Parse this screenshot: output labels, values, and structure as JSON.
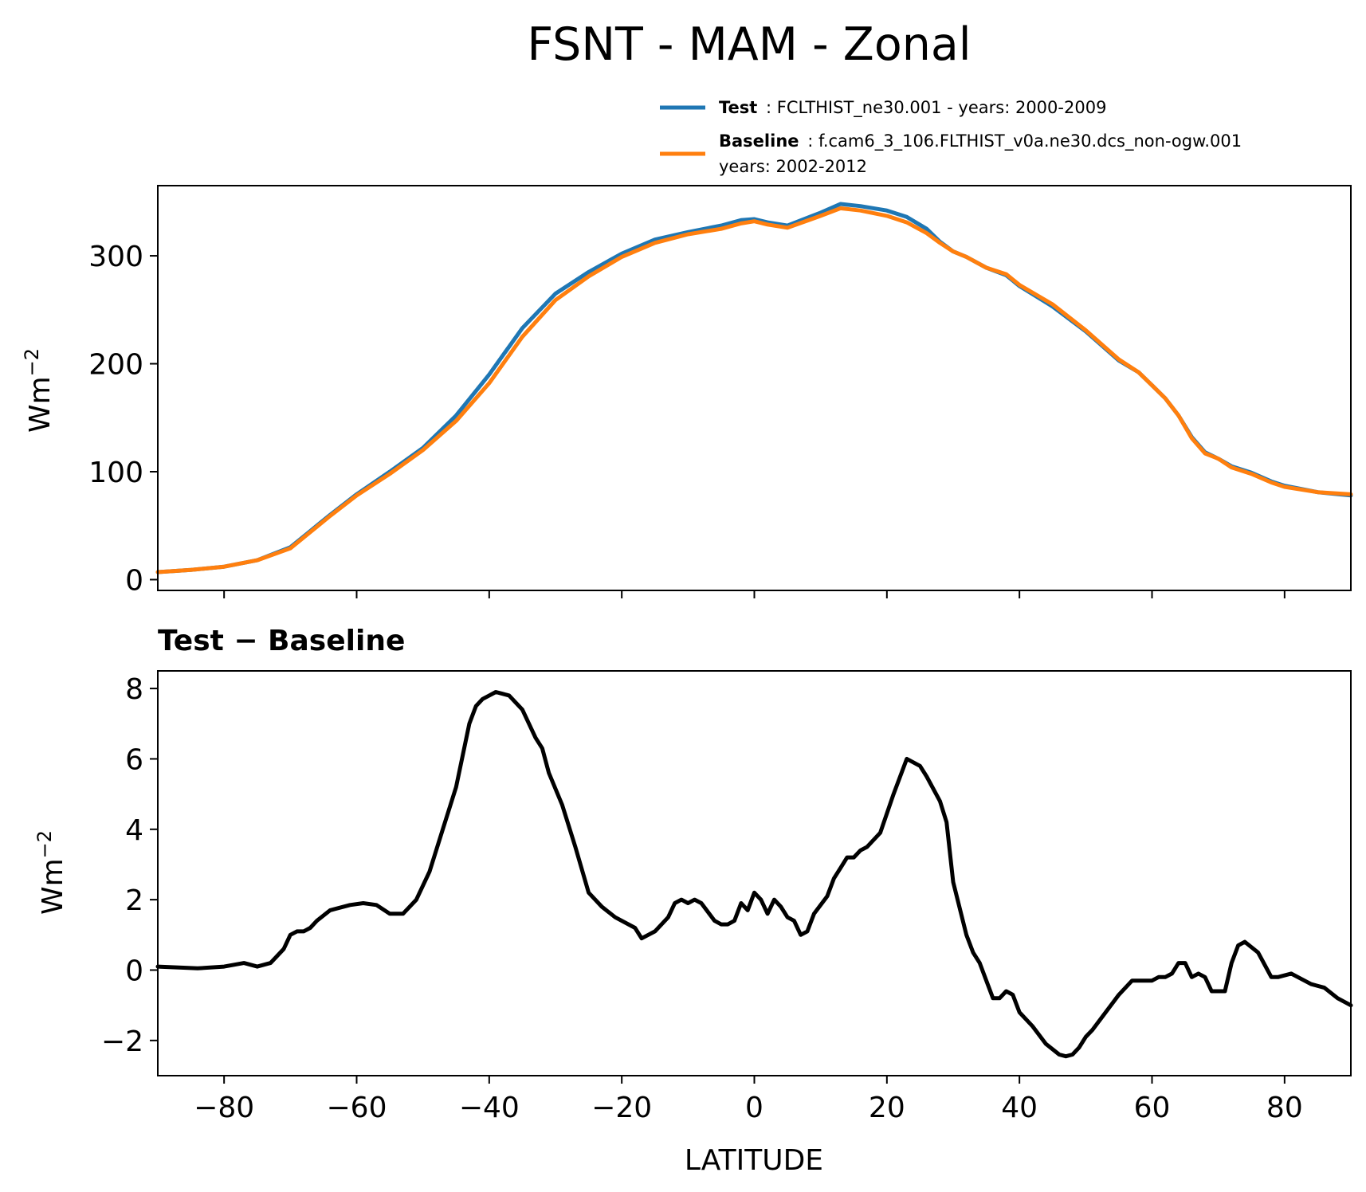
{
  "title": "FSNT - MAM - Zonal",
  "legend": {
    "test_label": "Test",
    "test_text": ": FCLTHIST_ne30.001 - years: 2000-2009",
    "baseline_label": "Baseline",
    "baseline_text": ": f.cam6_3_106.FLTHIST_v0a.ne30.dcs_non-ogw.001",
    "baseline_text2": "years: 2002-2012"
  },
  "colors": {
    "test": "#1f77b4",
    "baseline": "#ff7f0e",
    "diff": "#000000"
  },
  "chart_data": [
    {
      "type": "line",
      "title": "",
      "xlabel": "",
      "ylabel": "Wm",
      "ylabel_sup": "−2",
      "xlim": [
        -90,
        90
      ],
      "ylim": [
        -10,
        365
      ],
      "yticks": [
        0,
        100,
        200,
        300
      ],
      "ytick_labels": [
        "0",
        "100",
        "200",
        "300"
      ],
      "xticks": [
        -80,
        -60,
        -40,
        -20,
        0,
        20,
        40,
        60,
        80
      ],
      "series": [
        {
          "name": "Test",
          "x": [
            -90,
            -85,
            -80,
            -75,
            -70,
            -68,
            -66,
            -64,
            -60,
            -55,
            -50,
            -45,
            -40,
            -35,
            -30,
            -25,
            -20,
            -15,
            -10,
            -5,
            -2,
            0,
            2,
            5,
            10,
            13,
            16,
            20,
            23,
            26,
            28,
            30,
            32,
            35,
            38,
            40,
            45,
            50,
            55,
            58,
            60,
            62,
            64,
            66,
            68,
            70,
            72,
            75,
            78,
            80,
            85,
            90
          ],
          "y": [
            7,
            9,
            12,
            18,
            30,
            40,
            50,
            60,
            79,
            100,
            122,
            152,
            190,
            233,
            265,
            285,
            302,
            315,
            322,
            328,
            333,
            334,
            331,
            328,
            340,
            348,
            346,
            342,
            336,
            325,
            313,
            304,
            299,
            289,
            282,
            272,
            253,
            230,
            203,
            192,
            180,
            168,
            152,
            132,
            118,
            112,
            105,
            99,
            91,
            87,
            81,
            78
          ]
        },
        {
          "name": "Baseline",
          "x": [
            -90,
            -85,
            -80,
            -75,
            -70,
            -68,
            -66,
            -64,
            -60,
            -55,
            -50,
            -45,
            -40,
            -35,
            -30,
            -25,
            -20,
            -15,
            -10,
            -5,
            -2,
            0,
            2,
            5,
            10,
            13,
            16,
            20,
            23,
            26,
            28,
            30,
            32,
            35,
            38,
            40,
            45,
            50,
            55,
            58,
            60,
            62,
            64,
            66,
            68,
            70,
            72,
            75,
            78,
            80,
            85,
            90
          ],
          "y": [
            7,
            9,
            12,
            18,
            29,
            39,
            49,
            59,
            78,
            98,
            120,
            147,
            182,
            225,
            259,
            281,
            299,
            312,
            320,
            325,
            330,
            332,
            329,
            326,
            337,
            344,
            342,
            337,
            331,
            321,
            312,
            304,
            299,
            289,
            283,
            273,
            255,
            231,
            204,
            192,
            180,
            168,
            152,
            131,
            117,
            112,
            104,
            98,
            90,
            86,
            81,
            79
          ]
        }
      ]
    },
    {
      "type": "line",
      "title": "Test − Baseline",
      "xlabel": "LATITUDE",
      "ylabel": "Wm",
      "ylabel_sup": "−2",
      "xlim": [
        -90,
        90
      ],
      "ylim": [
        -3,
        8.5
      ],
      "yticks": [
        -2,
        0,
        2,
        4,
        6,
        8
      ],
      "ytick_labels": [
        "−2",
        "0",
        "2",
        "4",
        "6",
        "8"
      ],
      "xticks": [
        -80,
        -60,
        -40,
        -20,
        0,
        20,
        40,
        60,
        80
      ],
      "xtick_labels": [
        "−80",
        "−60",
        "−40",
        "−20",
        "0",
        "20",
        "40",
        "60",
        "80"
      ],
      "series": [
        {
          "name": "Test − Baseline",
          "x": [
            -90,
            -84,
            -80,
            -77,
            -75,
            -73,
            -71,
            -70,
            -69,
            -68,
            -67,
            -66,
            -64,
            -61,
            -59,
            -57,
            -55,
            -53,
            -51,
            -49,
            -47,
            -45,
            -43,
            -42,
            -41,
            -40,
            -39,
            -38,
            -37,
            -35,
            -33,
            -32,
            -31,
            -29,
            -27,
            -25,
            -23,
            -21,
            -18,
            -17,
            -16,
            -15,
            -13,
            -12,
            -11,
            -10,
            -9,
            -8,
            -6,
            -5,
            -4,
            -3,
            -2,
            -1,
            0,
            1,
            2,
            3,
            4,
            5,
            6,
            7,
            8,
            9,
            11,
            12,
            13,
            14,
            15,
            16,
            17,
            19,
            21,
            23,
            25,
            26,
            28,
            29,
            30,
            32,
            33,
            34,
            35,
            36,
            37,
            38,
            39,
            40,
            42,
            44,
            46,
            47,
            48,
            49,
            50,
            51,
            53,
            55,
            57,
            59,
            60,
            61,
            62,
            63,
            64,
            65,
            66,
            67,
            68,
            69,
            71,
            72,
            73,
            74,
            76,
            78,
            79,
            81,
            82,
            84,
            86,
            88,
            90
          ],
          "y": [
            0.1,
            0.05,
            0.1,
            0.2,
            0.1,
            0.2,
            0.6,
            1.0,
            1.1,
            1.1,
            1.2,
            1.4,
            1.7,
            1.85,
            1.9,
            1.85,
            1.6,
            1.6,
            2.0,
            2.8,
            4.0,
            5.2,
            7.0,
            7.5,
            7.7,
            7.8,
            7.9,
            7.85,
            7.8,
            7.4,
            6.6,
            6.3,
            5.6,
            4.7,
            3.5,
            2.2,
            1.8,
            1.5,
            1.2,
            0.9,
            1.0,
            1.1,
            1.5,
            1.9,
            2.0,
            1.9,
            2.0,
            1.9,
            1.4,
            1.3,
            1.3,
            1.4,
            1.9,
            1.7,
            2.2,
            2.0,
            1.6,
            2.0,
            1.8,
            1.5,
            1.4,
            1.0,
            1.1,
            1.6,
            2.1,
            2.6,
            2.9,
            3.2,
            3.2,
            3.4,
            3.5,
            3.9,
            5.0,
            6.0,
            5.8,
            5.5,
            4.8,
            4.2,
            2.5,
            1.0,
            0.5,
            0.2,
            -0.3,
            -0.8,
            -0.8,
            -0.6,
            -0.7,
            -1.2,
            -1.6,
            -2.1,
            -2.4,
            -2.45,
            -2.4,
            -2.2,
            -1.9,
            -1.7,
            -1.2,
            -0.7,
            -0.3,
            -0.3,
            -0.3,
            -0.2,
            -0.2,
            -0.1,
            0.2,
            0.2,
            -0.2,
            -0.1,
            -0.2,
            -0.6,
            -0.6,
            0.2,
            0.7,
            0.8,
            0.5,
            -0.2,
            -0.2,
            -0.1,
            -0.2,
            -0.4,
            -0.5,
            -0.8,
            -1.0
          ]
        }
      ]
    }
  ]
}
